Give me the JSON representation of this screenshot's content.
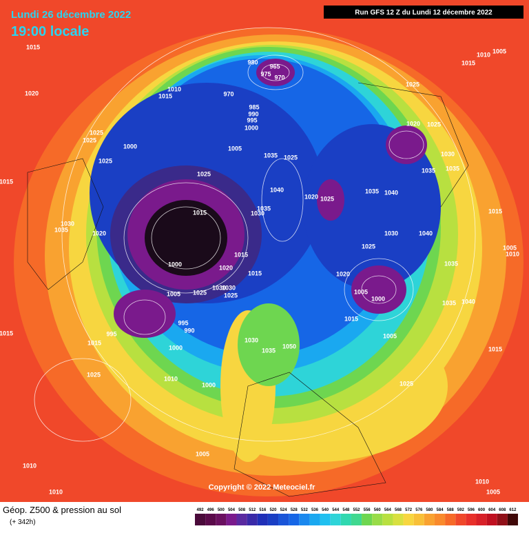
{
  "header": {
    "date": "Lundi 26 décembre 2022",
    "time": "19:00 locale",
    "run": "Run GFS 12 Z du Lundi 12 décembre 2022"
  },
  "footer": {
    "copyright": "Copyright © 2022 Meteociel.fr",
    "caption": "Géop. Z500 & pression au sol",
    "lead": "(+ 342h)"
  },
  "legend": {
    "labels": [
      "492",
      "496",
      "500",
      "504",
      "508",
      "512",
      "516",
      "520",
      "524",
      "528",
      "532",
      "536",
      "540",
      "544",
      "548",
      "552",
      "556",
      "560",
      "564",
      "568",
      "572",
      "576",
      "580",
      "584",
      "588",
      "592",
      "596",
      "600",
      "604",
      "608",
      "612"
    ]
  },
  "pressure_labels": [
    "1015",
    "1020",
    "1010",
    "1015",
    "980",
    "965",
    "975",
    "970",
    "970",
    "985",
    "990",
    "995",
    "1000",
    "1005",
    "1025",
    "1025",
    "1000",
    "1025",
    "1035",
    "1025",
    "1025",
    "1040",
    "1015",
    "1035",
    "1030",
    "1020",
    "1025",
    "1035",
    "1040",
    "1020",
    "1025",
    "1025",
    "1030",
    "1035",
    "1035",
    "1030",
    "1040",
    "1025",
    "1015",
    "1020",
    "1015",
    "1000",
    "1005",
    "1030",
    "1025",
    "1005",
    "1000",
    "1015",
    "1020",
    "995",
    "990",
    "995",
    "1030",
    "1050",
    "1035",
    "1015",
    "1000",
    "1025",
    "1010",
    "1000",
    "1005",
    "1025",
    "1015",
    "1035",
    "1035",
    "1040",
    "1015",
    "1015",
    "1010",
    "1010",
    "1005",
    "1010",
    "1005",
    "1015",
    "1005",
    "1010",
    "1010",
    "1005",
    "1015",
    "1030",
    "1035",
    "1020",
    "1030",
    "1025"
  ]
}
